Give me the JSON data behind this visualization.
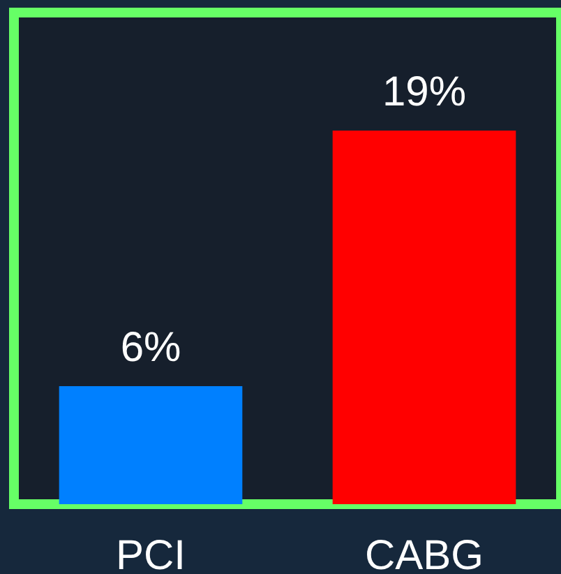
{
  "chart_data": {
    "type": "bar",
    "categories": [
      "PCI",
      "CABG"
    ],
    "values": [
      6,
      19
    ],
    "colors": [
      "#0080ff",
      "#ff0000"
    ],
    "value_labels": [
      "6%",
      "19%"
    ],
    "ylim": [
      0,
      25
    ],
    "tick_labels": "x"
  }
}
